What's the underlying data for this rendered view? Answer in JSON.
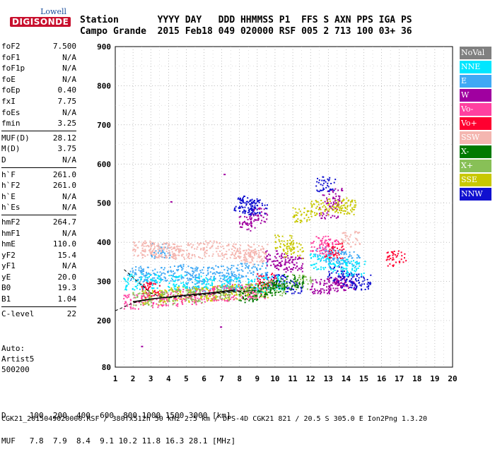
{
  "logo": {
    "line1": "Lowell",
    "line2": "DIGISONDE"
  },
  "header": {
    "labels": "Station       YYYY DAY   DDD HHMMSS P1  FFS S AXN PPS IGA PS",
    "values": "Campo Grande  2015 Feb18 049 020000 RSF 005 2 713 100 03+ 36"
  },
  "params_groups": [
    [
      {
        "k": "foF2",
        "v": "7.500"
      },
      {
        "k": "foF1",
        "v": "N/A"
      },
      {
        "k": "foF1p",
        "v": "N/A"
      },
      {
        "k": "foE",
        "v": "N/A"
      },
      {
        "k": "foEp",
        "v": "0.40"
      },
      {
        "k": "fxI",
        "v": "7.75"
      },
      {
        "k": "foEs",
        "v": "N/A"
      },
      {
        "k": "fmin",
        "v": "3.25"
      }
    ],
    [
      {
        "k": "MUF(D)",
        "v": "28.12"
      },
      {
        "k": "M(D)",
        "v": "3.75"
      },
      {
        "k": "D",
        "v": "N/A"
      }
    ],
    [
      {
        "k": "h`F",
        "v": "261.0"
      },
      {
        "k": "h`F2",
        "v": "261.0"
      },
      {
        "k": "h`E",
        "v": "N/A"
      },
      {
        "k": "h`Es",
        "v": "N/A"
      }
    ],
    [
      {
        "k": "hmF2",
        "v": "264.7"
      },
      {
        "k": "hmF1",
        "v": "N/A"
      },
      {
        "k": "hmE",
        "v": "110.0"
      },
      {
        "k": "yF2",
        "v": "15.4"
      },
      {
        "k": "yF1",
        "v": "N/A"
      },
      {
        "k": "yE",
        "v": "20.0"
      },
      {
        "k": "B0",
        "v": "19.3"
      },
      {
        "k": "B1",
        "v": "1.04"
      }
    ],
    [
      {
        "k": "C-level",
        "v": "22"
      }
    ]
  ],
  "auto": {
    "l1": "Auto:",
    "l2": "Artist5",
    "l3": "500200"
  },
  "muf_table": {
    "d_line": "D     100  200  400  600  800 1000 1500 3000 [km]",
    "muf_line": "MUF   7.8  7.9  8.4  9.1 10.2 11.8 16.3 28.1 [MHz]"
  },
  "footer": "CGK21_2015049020000.RSF / 380fx512h 50 kHz 2.5 km / DPS-4D CGK21 821 / 20.5 S 305.0 E Ion2Png 1.3.20",
  "legend": [
    {
      "label": "NoVal",
      "color": "#808080"
    },
    {
      "label": "NNE",
      "color": "#00e6ff"
    },
    {
      "label": "E",
      "color": "#3fa9f5"
    },
    {
      "label": "W",
      "color": "#a000a0"
    },
    {
      "label": "Vo-",
      "color": "#ff40a0"
    },
    {
      "label": "Vo+",
      "color": "#ff0030"
    },
    {
      "label": "SSW",
      "color": "#f4b6b0"
    },
    {
      "label": "X-",
      "color": "#007a00"
    },
    {
      "label": "X+",
      "color": "#88c057"
    },
    {
      "label": "SSE",
      "color": "#c8c800"
    },
    {
      "label": "NNW",
      "color": "#1010d0"
    }
  ],
  "chart_data": {
    "type": "scatter",
    "title": "",
    "xlabel": "",
    "ylabel": "",
    "xlim": [
      1,
      20
    ],
    "ylim": [
      80,
      900
    ],
    "xticks": [
      "1",
      "2",
      "3",
      "4",
      "5",
      "6",
      "7",
      "8",
      "9",
      "10",
      "11",
      "12",
      "13",
      "14",
      "15",
      "16",
      "17",
      "18",
      "19",
      "20"
    ],
    "yticks": [
      "80",
      "200",
      "300",
      "400",
      "500",
      "600",
      "700",
      "800",
      "900"
    ],
    "grid": true,
    "legend_position": "right",
    "series": [
      {
        "name": "E",
        "color": "#3fa9f5",
        "points": [
          [
            2.2,
            320
          ],
          [
            3.0,
            318
          ],
          [
            4.0,
            322
          ],
          [
            5.0,
            325
          ],
          [
            6.0,
            320
          ],
          [
            7.0,
            322
          ],
          [
            8.0,
            328
          ],
          [
            9.0,
            330
          ],
          [
            12.8,
            370
          ],
          [
            13.5,
            362
          ],
          [
            14.2,
            358
          ],
          [
            3.5,
            380
          ],
          [
            5.5,
            300
          ],
          [
            7.5,
            302
          ]
        ]
      },
      {
        "name": "SSW",
        "color": "#f4b6b0",
        "points": [
          [
            2.5,
            385
          ],
          [
            3.0,
            380
          ],
          [
            3.5,
            382
          ],
          [
            4.0,
            378
          ],
          [
            4.5,
            375
          ],
          [
            5.5,
            380
          ],
          [
            6.5,
            385
          ],
          [
            7.5,
            378
          ],
          [
            8.2,
            372
          ],
          [
            8.8,
            365
          ],
          [
            9.0,
            380
          ],
          [
            14.2,
            410
          ]
        ]
      },
      {
        "name": "W",
        "color": "#a000a0",
        "points": [
          [
            10.0,
            360
          ],
          [
            10.5,
            350
          ],
          [
            11.0,
            345
          ],
          [
            12.5,
            290
          ],
          [
            13.0,
            292
          ],
          [
            13.5,
            295
          ],
          [
            14.0,
            300
          ],
          [
            13.0,
            480
          ],
          [
            13.2,
            520
          ],
          [
            8.5,
            450
          ],
          [
            9.0,
            470
          ]
        ]
      },
      {
        "name": "NNW",
        "color": "#1010d0",
        "points": [
          [
            8.2,
            500
          ],
          [
            8.5,
            495
          ],
          [
            9.0,
            490
          ],
          [
            12.8,
            550
          ],
          [
            13.5,
            320
          ],
          [
            14.2,
            305
          ],
          [
            14.8,
            300
          ],
          [
            10.0,
            300
          ],
          [
            11.0,
            290
          ]
        ]
      },
      {
        "name": "SSE",
        "color": "#c8c800",
        "points": [
          [
            3.0,
            260
          ],
          [
            4.0,
            265
          ],
          [
            5.0,
            268
          ],
          [
            6.0,
            270
          ],
          [
            7.0,
            272
          ],
          [
            8.0,
            275
          ],
          [
            9.0,
            278
          ],
          [
            11.0,
            380
          ],
          [
            11.5,
            470
          ],
          [
            12.5,
            490
          ],
          [
            13.5,
            495
          ],
          [
            14.0,
            492
          ],
          [
            10.5,
            400
          ]
        ]
      },
      {
        "name": "NNE",
        "color": "#00e6ff",
        "points": [
          [
            2.0,
            300
          ],
          [
            3.0,
            302
          ],
          [
            4.5,
            298
          ],
          [
            6.0,
            296
          ],
          [
            7.5,
            294
          ],
          [
            9.0,
            292
          ],
          [
            10.0,
            298
          ],
          [
            12.5,
            352
          ],
          [
            13.5,
            340
          ],
          [
            14.5,
            335
          ]
        ]
      },
      {
        "name": "Vo-",
        "color": "#ff40a0",
        "points": [
          [
            2.0,
            250
          ],
          [
            3.0,
            255
          ],
          [
            4.0,
            258
          ],
          [
            5.0,
            262
          ],
          [
            6.0,
            266
          ],
          [
            7.0,
            270
          ],
          [
            8.0,
            274
          ],
          [
            9.0,
            278
          ],
          [
            12.5,
            398
          ],
          [
            13.0,
            390
          ]
        ]
      },
      {
        "name": "Vo+",
        "color": "#ff0030",
        "points": [
          [
            13.3,
            380
          ],
          [
            9.5,
            305
          ],
          [
            16.8,
            360
          ],
          [
            3.0,
            280
          ]
        ]
      },
      {
        "name": "X+",
        "color": "#88c057",
        "points": [
          [
            2.5,
            258
          ],
          [
            4.0,
            262
          ],
          [
            5.5,
            266
          ],
          [
            7.0,
            272
          ],
          [
            8.5,
            276
          ],
          [
            10.0,
            285
          ],
          [
            11.5,
            300
          ]
        ]
      },
      {
        "name": "X-",
        "color": "#007a00",
        "points": [
          [
            8.5,
            268
          ],
          [
            9.5,
            280
          ],
          [
            10.0,
            290
          ],
          [
            11.0,
            300
          ]
        ]
      }
    ],
    "trace_line": {
      "x": [
        2.0,
        3.0,
        4.0,
        5.0,
        6.0,
        7.0,
        7.75
      ],
      "y": [
        248,
        255,
        260,
        265,
        269,
        274,
        278
      ]
    },
    "dashed_curve": {
      "x": [
        1.5,
        2.0,
        2.5,
        3.0,
        3.5,
        4.0,
        5.0,
        6.0,
        7.0,
        8.0,
        9.0
      ],
      "y": [
        330,
        310,
        290,
        270,
        262,
        258,
        262,
        266,
        270,
        274,
        278
      ]
    },
    "dashed_lower": {
      "x": [
        1.0,
        1.5,
        2.0,
        3.0,
        4.0,
        5.0,
        6.0,
        7.0,
        8.0
      ],
      "y": [
        225,
        235,
        245,
        255,
        260,
        264,
        268,
        272,
        276
      ]
    },
    "stray_points": [
      [
        2.45,
        135
      ],
      [
        7.1,
        575
      ],
      [
        6.9,
        185
      ],
      [
        4.1,
        505
      ]
    ]
  }
}
